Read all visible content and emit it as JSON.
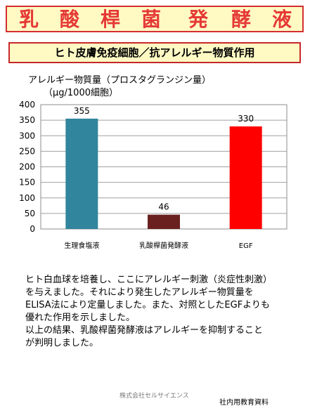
{
  "header": {
    "title_chars": [
      "乳",
      "酸",
      "桿",
      "菌",
      "発",
      "酵",
      "液"
    ]
  },
  "subtitle": "ヒト皮膚免疫細胞／抗アレルギー物質作用",
  "chart_data": {
    "type": "bar",
    "title": "アレルギー物質量（プロスタグランジン量）",
    "ylabel": "（μg/1000細胞）",
    "categories": [
      "生理食塩液",
      "乳酸桿菌発酵液",
      "EGF"
    ],
    "values": [
      355,
      46,
      330
    ],
    "data_labels": [
      "355",
      "46",
      "330"
    ],
    "colors": [
      "#31859c",
      "#6b2020",
      "#ff0000"
    ],
    "ylim": [
      0,
      400
    ],
    "yticks": [
      0,
      50,
      100,
      150,
      200,
      250,
      300,
      350,
      400
    ],
    "ytick_labels": [
      "0",
      "50",
      "100",
      "150",
      "200",
      "250",
      "300",
      "350",
      "400"
    ],
    "grid": true,
    "legend": "none"
  },
  "description": [
    "ヒト白血球を培養し、ここにアレルギー刺激（炎症性刺激）を与えました。それにより発生したアレルギー物質量をELISA法により定量しました。また、対照としたEGFよりも優れた作用を示しました。",
    "以上の結果、乳酸桿菌発酵液はアレルギーを抑制することが判明しました。"
  ],
  "footer": {
    "company": "株式会社セルサイエンス",
    "note": "社内用教育資料"
  }
}
